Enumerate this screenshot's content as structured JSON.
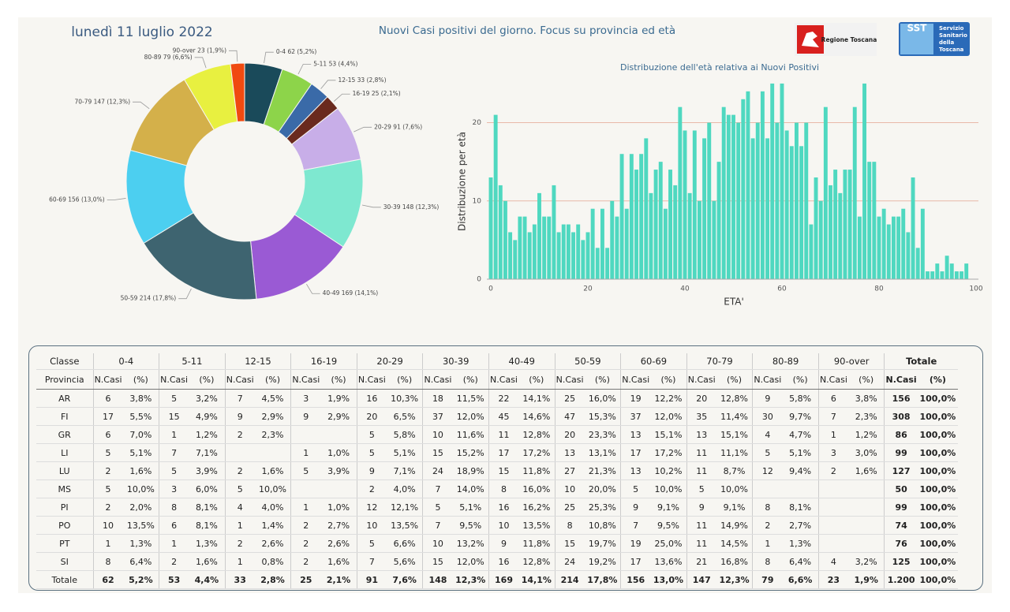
{
  "header": {
    "date": "lunedì 11 luglio 2022",
    "title": "Nuovi Casi positivi del giorno. Focus su provincia ed età",
    "logo_left": "Regione Toscana",
    "logo_right": "SST",
    "logo_right_lines": [
      "Servizio",
      "Sanitario",
      "della",
      "Toscana"
    ]
  },
  "chart_data": [
    {
      "type": "pie",
      "donut": true,
      "categories": [
        "0-4",
        "5-11",
        "12-15",
        "16-19",
        "20-29",
        "30-39",
        "40-49",
        "50-59",
        "60-69",
        "70-79",
        "80-89",
        "90-over"
      ],
      "values": [
        62,
        53,
        33,
        25,
        91,
        148,
        169,
        214,
        156,
        147,
        79,
        23
      ],
      "value_labels": [
        "62 (5,2%)",
        "53 (4,4%)",
        "33 (2,8%)",
        "25 (2,1%)",
        "91 (7,6%)",
        "148 (12,3%)",
        "169 (14,1%)",
        "214 (17,8%)",
        "156 (13,0%)",
        "147 (12,3%)",
        "79 (6,6%)",
        "23 (1,9%)"
      ],
      "colors": [
        "#1a4a5a",
        "#8dd44a",
        "#3a6aa8",
        "#6a2a1e",
        "#c8aee8",
        "#7ee8d0",
        "#9a5ad4",
        "#3e6470",
        "#4ccff0",
        "#d4b04a",
        "#e8f040",
        "#f04a10"
      ]
    },
    {
      "type": "bar",
      "title": "Distribuzione dell'età relativa ai Nuovi Positivi",
      "xlabel": "ETA'",
      "ylabel": "Distribuzione per età",
      "x": [
        0,
        1,
        2,
        3,
        4,
        5,
        6,
        7,
        8,
        9,
        10,
        11,
        12,
        13,
        14,
        15,
        16,
        17,
        18,
        19,
        20,
        21,
        22,
        23,
        24,
        25,
        26,
        27,
        28,
        29,
        30,
        31,
        32,
        33,
        34,
        35,
        36,
        37,
        38,
        39,
        40,
        41,
        42,
        43,
        44,
        45,
        46,
        47,
        48,
        49,
        50,
        51,
        52,
        53,
        54,
        55,
        56,
        57,
        58,
        59,
        60,
        61,
        62,
        63,
        64,
        65,
        66,
        67,
        68,
        69,
        70,
        71,
        72,
        73,
        74,
        75,
        76,
        77,
        78,
        79,
        80,
        81,
        82,
        83,
        84,
        85,
        86,
        87,
        88,
        89,
        90,
        91,
        92,
        93,
        94,
        95,
        96,
        97,
        98
      ],
      "values": [
        13,
        21,
        12,
        10,
        6,
        5,
        8,
        8,
        6,
        7,
        11,
        8,
        8,
        12,
        6,
        7,
        7,
        6,
        7,
        5,
        6,
        9,
        4,
        9,
        4,
        10,
        8,
        16,
        9,
        16,
        14,
        16,
        18,
        11,
        14,
        15,
        9,
        14,
        12,
        22,
        19,
        11,
        19,
        10,
        18,
        20,
        10,
        15,
        22,
        21,
        21,
        20,
        23,
        24,
        18,
        20,
        24,
        18,
        25,
        20,
        25,
        19,
        17,
        20,
        17,
        20,
        7,
        13,
        10,
        22,
        12,
        14,
        11,
        14,
        14,
        22,
        8,
        25,
        15,
        15,
        8,
        9,
        7,
        8,
        8,
        9,
        6,
        13,
        4,
        9,
        1,
        1,
        2,
        1,
        3,
        2,
        1,
        1,
        2
      ],
      "color": "#4fd8c0",
      "xlim": [
        0,
        100
      ],
      "ylim": [
        0,
        26
      ],
      "xticks": [
        0,
        20,
        40,
        60,
        80,
        100
      ],
      "yticks": [
        0,
        10,
        20
      ],
      "grid": true
    }
  ],
  "table": {
    "corner": [
      "Classe",
      "Provincia"
    ],
    "groups": [
      "0-4",
      "5-11",
      "12-15",
      "16-19",
      "20-29",
      "30-39",
      "40-49",
      "50-59",
      "60-69",
      "70-79",
      "80-89",
      "90-over",
      "Totale"
    ],
    "subheaders": [
      "N.Casi",
      "(%)"
    ],
    "rows": [
      {
        "name": "AR",
        "cells": [
          "6",
          "3,8%",
          "5",
          "3,2%",
          "7",
          "4,5%",
          "3",
          "1,9%",
          "16",
          "10,3%",
          "18",
          "11,5%",
          "22",
          "14,1%",
          "25",
          "16,0%",
          "19",
          "12,2%",
          "20",
          "12,8%",
          "9",
          "5,8%",
          "6",
          "3,8%",
          "156",
          "100,0%"
        ]
      },
      {
        "name": "FI",
        "cells": [
          "17",
          "5,5%",
          "15",
          "4,9%",
          "9",
          "2,9%",
          "9",
          "2,9%",
          "20",
          "6,5%",
          "37",
          "12,0%",
          "45",
          "14,6%",
          "47",
          "15,3%",
          "37",
          "12,0%",
          "35",
          "11,4%",
          "30",
          "9,7%",
          "7",
          "2,3%",
          "308",
          "100,0%"
        ]
      },
      {
        "name": "GR",
        "cells": [
          "6",
          "7,0%",
          "1",
          "1,2%",
          "2",
          "2,3%",
          null,
          null,
          "5",
          "5,8%",
          "10",
          "11,6%",
          "11",
          "12,8%",
          "20",
          "23,3%",
          "13",
          "15,1%",
          "13",
          "15,1%",
          "4",
          "4,7%",
          "1",
          "1,2%",
          "86",
          "100,0%"
        ]
      },
      {
        "name": "LI",
        "cells": [
          "5",
          "5,1%",
          "7",
          "7,1%",
          null,
          null,
          "1",
          "1,0%",
          "5",
          "5,1%",
          "15",
          "15,2%",
          "17",
          "17,2%",
          "13",
          "13,1%",
          "17",
          "17,2%",
          "11",
          "11,1%",
          "5",
          "5,1%",
          "3",
          "3,0%",
          "99",
          "100,0%"
        ]
      },
      {
        "name": "LU",
        "cells": [
          "2",
          "1,6%",
          "5",
          "3,9%",
          "2",
          "1,6%",
          "5",
          "3,9%",
          "9",
          "7,1%",
          "24",
          "18,9%",
          "15",
          "11,8%",
          "27",
          "21,3%",
          "13",
          "10,2%",
          "11",
          "8,7%",
          "12",
          "9,4%",
          "2",
          "1,6%",
          "127",
          "100,0%"
        ]
      },
      {
        "name": "MS",
        "cells": [
          "5",
          "10,0%",
          "3",
          "6,0%",
          "5",
          "10,0%",
          null,
          null,
          "2",
          "4,0%",
          "7",
          "14,0%",
          "8",
          "16,0%",
          "10",
          "20,0%",
          "5",
          "10,0%",
          "5",
          "10,0%",
          null,
          null,
          null,
          null,
          "50",
          "100,0%"
        ]
      },
      {
        "name": "PI",
        "cells": [
          "2",
          "2,0%",
          "8",
          "8,1%",
          "4",
          "4,0%",
          "1",
          "1,0%",
          "12",
          "12,1%",
          "5",
          "5,1%",
          "16",
          "16,2%",
          "25",
          "25,3%",
          "9",
          "9,1%",
          "9",
          "9,1%",
          "8",
          "8,1%",
          null,
          null,
          "99",
          "100,0%"
        ]
      },
      {
        "name": "PO",
        "cells": [
          "10",
          "13,5%",
          "6",
          "8,1%",
          "1",
          "1,4%",
          "2",
          "2,7%",
          "10",
          "13,5%",
          "7",
          "9,5%",
          "10",
          "13,5%",
          "8",
          "10,8%",
          "7",
          "9,5%",
          "11",
          "14,9%",
          "2",
          "2,7%",
          null,
          null,
          "74",
          "100,0%"
        ]
      },
      {
        "name": "PT",
        "cells": [
          "1",
          "1,3%",
          "1",
          "1,3%",
          "2",
          "2,6%",
          "2",
          "2,6%",
          "5",
          "6,6%",
          "10",
          "13,2%",
          "9",
          "11,8%",
          "15",
          "19,7%",
          "19",
          "25,0%",
          "11",
          "14,5%",
          "1",
          "1,3%",
          null,
          null,
          "76",
          "100,0%"
        ]
      },
      {
        "name": "SI",
        "cells": [
          "8",
          "6,4%",
          "2",
          "1,6%",
          "1",
          "0,8%",
          "2",
          "1,6%",
          "7",
          "5,6%",
          "15",
          "12,0%",
          "16",
          "12,8%",
          "24",
          "19,2%",
          "17",
          "13,6%",
          "21",
          "16,8%",
          "8",
          "6,4%",
          "4",
          "3,2%",
          "125",
          "100,0%"
        ]
      },
      {
        "name": "Totale",
        "cells": [
          "62",
          "5,2%",
          "53",
          "4,4%",
          "33",
          "2,8%",
          "25",
          "2,1%",
          "91",
          "7,6%",
          "148",
          "12,3%",
          "169",
          "14,1%",
          "214",
          "17,8%",
          "156",
          "13,0%",
          "147",
          "12,3%",
          "79",
          "6,6%",
          "23",
          "1,9%",
          "1.200",
          "100,0%"
        ]
      }
    ]
  }
}
